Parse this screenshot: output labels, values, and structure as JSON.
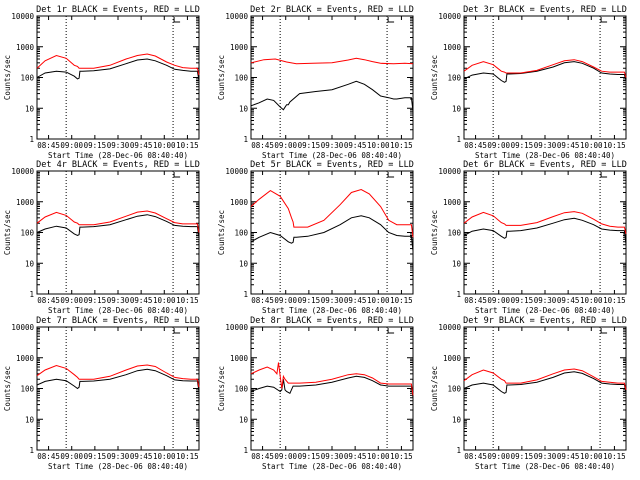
{
  "chart_data": [
    {
      "type": "line",
      "title": "Det 1r BLACK = Events, RED = LLD",
      "xlabel": "Start Time (28-Dec-06 08:40:40)",
      "ylabel": "Counts/sec",
      "yscale": "log",
      "ylim": [
        1,
        10000
      ],
      "xlim": [
        0,
        100
      ],
      "xticks": [
        "08:45",
        "09:00",
        "09:15",
        "09:30",
        "09:45",
        "10:00",
        "10:15"
      ],
      "yticks": [
        "1",
        "10",
        "100",
        "1000",
        "10000"
      ],
      "series": [
        {
          "color": "#000000",
          "x": [
            0,
            5,
            12,
            18,
            23,
            25,
            26,
            26.5,
            28,
            35,
            45,
            55,
            62,
            68,
            73,
            80,
            85,
            90,
            95,
            99,
            100
          ],
          "y": [
            100,
            140,
            160,
            150,
            110,
            90,
            95,
            160,
            160,
            165,
            190,
            280,
            370,
            400,
            350,
            250,
            185,
            170,
            160,
            160,
            80
          ]
        },
        {
          "color": "#ff0000",
          "x": [
            0,
            5,
            12,
            18,
            23,
            25,
            26,
            26.5,
            28,
            35,
            45,
            55,
            62,
            68,
            73,
            80,
            85,
            90,
            95,
            99,
            100
          ],
          "y": [
            200,
            350,
            520,
            420,
            250,
            230,
            200,
            200,
            200,
            200,
            250,
            400,
            520,
            580,
            500,
            320,
            250,
            210,
            200,
            200,
            120
          ]
        }
      ]
    },
    {
      "type": "line",
      "title": "Det 2r BLACK = Events, RED = LLD",
      "xlabel": "Start Time (28-Dec-06 08:40:40)",
      "ylabel": "Counts/sec",
      "yscale": "log",
      "ylim": [
        1,
        10000
      ],
      "xlim": [
        0,
        100
      ],
      "xticks": [
        "08:45",
        "09:00",
        "09:15",
        "09:30",
        "09:45",
        "10:00",
        "10:15"
      ],
      "yticks": [
        "1",
        "10",
        "100",
        "1000",
        "10000"
      ],
      "series": [
        {
          "color": "#000000",
          "x": [
            0,
            5,
            10,
            14,
            18,
            20,
            22,
            23,
            24,
            30,
            40,
            50,
            60,
            65,
            70,
            75,
            80,
            85,
            88,
            90,
            95,
            99,
            100
          ],
          "y": [
            12,
            15,
            20,
            18,
            11,
            9,
            13,
            13,
            16,
            30,
            35,
            40,
            60,
            75,
            60,
            40,
            25,
            22,
            20,
            20,
            22,
            22,
            8
          ]
        },
        {
          "color": "#ff0000",
          "x": [
            0,
            8,
            15,
            22,
            28,
            38,
            50,
            60,
            65,
            70,
            75,
            80,
            88,
            95,
            100
          ],
          "y": [
            300,
            380,
            400,
            320,
            280,
            290,
            300,
            370,
            420,
            380,
            330,
            290,
            280,
            290,
            280
          ]
        }
      ]
    },
    {
      "type": "line",
      "title": "Det 3r BLACK = Events, RED = LLD",
      "xlabel": "Start Time (28-Dec-06 08:40:40)",
      "ylabel": "Counts/sec",
      "yscale": "log",
      "ylim": [
        1,
        10000
      ],
      "xlim": [
        0,
        100
      ],
      "xticks": [
        "08:45",
        "09:00",
        "09:15",
        "09:30",
        "09:45",
        "10:00",
        "10:15"
      ],
      "yticks": [
        "1",
        "10",
        "100",
        "1000",
        "10000"
      ],
      "series": [
        {
          "color": "#000000",
          "x": [
            0,
            5,
            12,
            18,
            23,
            25,
            26,
            26.5,
            28,
            35,
            45,
            55,
            62,
            68,
            73,
            80,
            85,
            90,
            95,
            99,
            100
          ],
          "y": [
            90,
            120,
            140,
            130,
            80,
            70,
            75,
            130,
            130,
            135,
            160,
            220,
            300,
            330,
            290,
            200,
            140,
            130,
            125,
            125,
            80
          ]
        },
        {
          "color": "#ff0000",
          "x": [
            0,
            5,
            12,
            18,
            23,
            25,
            26,
            26.5,
            28,
            35,
            45,
            55,
            62,
            68,
            73,
            80,
            85,
            90,
            95,
            99,
            100
          ],
          "y": [
            160,
            250,
            330,
            260,
            160,
            150,
            140,
            140,
            140,
            140,
            170,
            260,
            350,
            380,
            330,
            220,
            160,
            150,
            150,
            150,
            100
          ]
        }
      ]
    },
    {
      "type": "line",
      "title": "Det 4r BLACK = Events, RED = LLD",
      "xlabel": "Start Time (28-Dec-06 08:40:40)",
      "ylabel": "Counts/sec",
      "yscale": "log",
      "ylim": [
        1,
        10000
      ],
      "xlim": [
        0,
        100
      ],
      "xticks": [
        "08:45",
        "09:00",
        "09:15",
        "09:30",
        "09:45",
        "10:00",
        "10:15"
      ],
      "yticks": [
        "1",
        "10",
        "100",
        "1000",
        "10000"
      ],
      "series": [
        {
          "color": "#000000",
          "x": [
            0,
            5,
            12,
            18,
            23,
            25,
            26,
            26.5,
            28,
            35,
            45,
            55,
            62,
            68,
            73,
            80,
            85,
            90,
            95,
            99,
            100
          ],
          "y": [
            100,
            130,
            160,
            140,
            90,
            80,
            85,
            150,
            150,
            155,
            180,
            260,
            340,
            380,
            330,
            230,
            170,
            160,
            155,
            155,
            70
          ]
        },
        {
          "color": "#ff0000",
          "x": [
            0,
            5,
            12,
            18,
            23,
            25,
            26,
            26.5,
            28,
            35,
            45,
            55,
            62,
            68,
            73,
            80,
            85,
            90,
            95,
            99,
            100
          ],
          "y": [
            200,
            320,
            450,
            360,
            220,
            200,
            180,
            180,
            180,
            180,
            220,
            340,
            460,
            500,
            430,
            280,
            210,
            190,
            190,
            190,
            100
          ]
        }
      ]
    },
    {
      "type": "line",
      "title": "Det 5r BLACK = Events, RED = LLD",
      "xlabel": "Start Time (28-Dec-06 08:40:40)",
      "ylabel": "Counts/sec",
      "yscale": "log",
      "ylim": [
        1,
        10000
      ],
      "xlim": [
        0,
        100
      ],
      "xticks": [
        "08:45",
        "09:00",
        "09:15",
        "09:30",
        "09:45",
        "10:00",
        "10:15"
      ],
      "yticks": [
        "1",
        "10",
        "100",
        "1000",
        "10000"
      ],
      "series": [
        {
          "color": "#000000",
          "x": [
            0,
            5,
            12,
            18,
            23,
            25,
            26,
            26.5,
            28,
            35,
            45,
            55,
            62,
            68,
            73,
            80,
            85,
            90,
            95,
            99,
            100
          ],
          "y": [
            50,
            70,
            100,
            80,
            50,
            45,
            48,
            70,
            70,
            75,
            100,
            180,
            300,
            350,
            300,
            180,
            100,
            80,
            75,
            75,
            25
          ]
        },
        {
          "color": "#ff0000",
          "x": [
            0,
            5,
            12,
            18,
            23,
            25,
            26,
            26.5,
            28,
            35,
            45,
            55,
            62,
            68,
            73,
            80,
            85,
            90,
            95,
            99,
            100
          ],
          "y": [
            700,
            1200,
            2300,
            1500,
            600,
            300,
            220,
            150,
            150,
            150,
            250,
            800,
            2000,
            2500,
            1800,
            700,
            250,
            180,
            180,
            180,
            70
          ]
        }
      ]
    },
    {
      "type": "line",
      "title": "Det 6r BLACK = Events, RED = LLD",
      "xlabel": "Start Time (28-Dec-06 08:40:40)",
      "ylabel": "Counts/sec",
      "yscale": "log",
      "ylim": [
        1,
        10000
      ],
      "xlim": [
        0,
        100
      ],
      "xticks": [
        "08:45",
        "09:00",
        "09:15",
        "09:30",
        "09:45",
        "10:00",
        "10:15"
      ],
      "yticks": [
        "1",
        "10",
        "100",
        "1000",
        "10000"
      ],
      "series": [
        {
          "color": "#000000",
          "x": [
            0,
            5,
            12,
            18,
            23,
            25,
            26,
            26.5,
            28,
            35,
            45,
            55,
            62,
            68,
            73,
            80,
            85,
            90,
            95,
            99,
            100
          ],
          "y": [
            80,
            110,
            130,
            115,
            75,
            65,
            70,
            110,
            110,
            115,
            140,
            200,
            260,
            290,
            250,
            180,
            130,
            120,
            115,
            115,
            40
          ]
        },
        {
          "color": "#ff0000",
          "x": [
            0,
            5,
            12,
            18,
            23,
            25,
            26,
            26.5,
            28,
            35,
            45,
            55,
            62,
            68,
            73,
            80,
            85,
            90,
            95,
            99,
            100
          ],
          "y": [
            200,
            320,
            450,
            350,
            210,
            190,
            170,
            170,
            170,
            170,
            210,
            330,
            440,
            480,
            420,
            270,
            190,
            160,
            150,
            150,
            90
          ]
        }
      ]
    },
    {
      "type": "line",
      "title": "Det 7r BLACK = Events, RED = LLD",
      "xlabel": "Start Time (28-Dec-06 08:40:40)",
      "ylabel": "Counts/sec",
      "yscale": "log",
      "ylim": [
        1,
        10000
      ],
      "xlim": [
        0,
        100
      ],
      "xticks": [
        "08:45",
        "09:00",
        "09:15",
        "09:30",
        "09:45",
        "10:00",
        "10:15"
      ],
      "yticks": [
        "1",
        "10",
        "100",
        "1000",
        "10000"
      ],
      "series": [
        {
          "color": "#000000",
          "x": [
            0,
            5,
            12,
            18,
            23,
            25,
            26,
            26.5,
            28,
            35,
            45,
            55,
            62,
            68,
            73,
            80,
            85,
            90,
            95,
            99,
            100
          ],
          "y": [
            130,
            170,
            200,
            180,
            120,
            100,
            110,
            170,
            170,
            175,
            200,
            280,
            380,
            420,
            380,
            260,
            190,
            180,
            175,
            175,
            80
          ]
        },
        {
          "color": "#ff0000",
          "x": [
            0,
            5,
            12,
            18,
            23,
            25,
            26,
            26.5,
            28,
            35,
            45,
            55,
            62,
            68,
            73,
            80,
            85,
            90,
            95,
            99,
            100
          ],
          "y": [
            260,
            400,
            560,
            450,
            280,
            230,
            200,
            200,
            200,
            200,
            250,
            400,
            540,
            580,
            520,
            320,
            230,
            210,
            200,
            200,
            110
          ]
        }
      ]
    },
    {
      "type": "line",
      "title": "Det 8r BLACK = Events, RED = LLD",
      "xlabel": "Start Time (28-Dec-06 08:40:40)",
      "ylabel": "Counts/sec",
      "yscale": "log",
      "ylim": [
        1,
        10000
      ],
      "xlim": [
        0,
        100
      ],
      "xticks": [
        "08:45",
        "09:00",
        "09:15",
        "09:30",
        "09:45",
        "10:00",
        "10:15"
      ],
      "yticks": [
        "1",
        "10",
        "100",
        "1000",
        "10000"
      ],
      "series": [
        {
          "color": "#000000",
          "x": [
            0,
            5,
            10,
            14,
            18,
            19,
            20,
            21,
            22,
            24,
            26,
            30,
            40,
            50,
            60,
            65,
            70,
            75,
            80,
            85,
            90,
            95,
            99,
            100
          ],
          "y": [
            80,
            100,
            120,
            110,
            80,
            90,
            200,
            90,
            80,
            70,
            120,
            120,
            130,
            160,
            220,
            250,
            230,
            180,
            130,
            120,
            120,
            120,
            120,
            50
          ]
        },
        {
          "color": "#ff0000",
          "x": [
            0,
            5,
            10,
            14,
            16,
            17,
            18,
            19,
            20,
            21,
            23,
            26,
            30,
            40,
            50,
            60,
            65,
            70,
            75,
            80,
            85,
            90,
            95,
            99,
            100
          ],
          "y": [
            300,
            400,
            500,
            400,
            300,
            700,
            250,
            100,
            250,
            200,
            150,
            150,
            150,
            160,
            200,
            280,
            300,
            280,
            220,
            150,
            140,
            140,
            140,
            140,
            60
          ]
        }
      ]
    },
    {
      "type": "line",
      "title": "Det 9r BLACK = Events, RED = LLD",
      "xlabel": "Start Time (28-Dec-06 08:40:40)",
      "ylabel": "Counts/sec",
      "yscale": "log",
      "ylim": [
        1,
        10000
      ],
      "xlim": [
        0,
        100
      ],
      "xticks": [
        "08:45",
        "09:00",
        "09:15",
        "09:30",
        "09:45",
        "10:00",
        "10:15"
      ],
      "yticks": [
        "1",
        "10",
        "100",
        "1000",
        "10000"
      ],
      "series": [
        {
          "color": "#000000",
          "x": [
            0,
            5,
            12,
            18,
            23,
            25,
            26,
            26.5,
            28,
            35,
            45,
            55,
            62,
            68,
            73,
            80,
            85,
            90,
            95,
            99,
            100
          ],
          "y": [
            100,
            130,
            150,
            130,
            80,
            70,
            75,
            130,
            130,
            135,
            160,
            230,
            320,
            350,
            310,
            210,
            150,
            140,
            135,
            135,
            70
          ]
        },
        {
          "color": "#ff0000",
          "x": [
            0,
            5,
            12,
            18,
            23,
            25,
            26,
            26.5,
            28,
            35,
            45,
            55,
            62,
            68,
            73,
            80,
            85,
            90,
            95,
            99,
            100
          ],
          "y": [
            180,
            280,
            400,
            320,
            200,
            180,
            150,
            150,
            150,
            150,
            190,
            300,
            400,
            430,
            380,
            240,
            170,
            160,
            150,
            150,
            90
          ]
        }
      ]
    }
  ]
}
